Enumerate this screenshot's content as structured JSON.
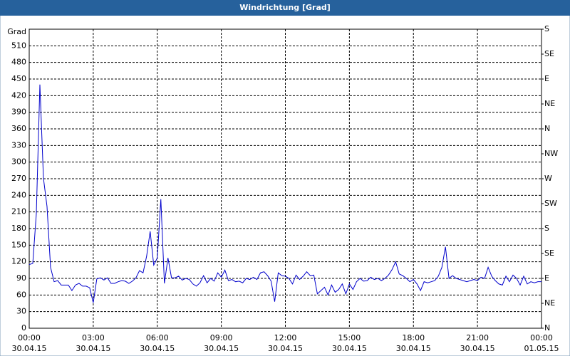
{
  "chart_data": {
    "type": "line",
    "title": "Windrichtung [Grad]",
    "y_label": "Grad",
    "xlim": [
      0,
      1440
    ],
    "xticks": [
      {
        "value": 0,
        "label": "00:00"
      },
      {
        "value": 180,
        "label": "03:00"
      },
      {
        "value": 360,
        "label": "06:00"
      },
      {
        "value": 540,
        "label": "09:00"
      },
      {
        "value": 720,
        "label": "12:00"
      },
      {
        "value": 900,
        "label": "15:00"
      },
      {
        "value": 1080,
        "label": "18:00"
      },
      {
        "value": 1260,
        "label": "21:00"
      },
      {
        "value": 1440,
        "label": "00:00"
      }
    ],
    "xtick_dates": [
      "30.04.15",
      "30.04.15",
      "30.04.15",
      "30.04.15",
      "30.04.15",
      "30.04.15",
      "30.04.15",
      "30.04.15",
      "01.05.15"
    ],
    "ylim": [
      0,
      540
    ],
    "yticks": [
      0,
      30,
      60,
      90,
      120,
      150,
      180,
      210,
      240,
      270,
      300,
      330,
      360,
      390,
      420,
      450,
      480,
      510
    ],
    "y2lim": [
      0,
      540
    ],
    "y2ticks": [
      {
        "value": 0,
        "label": "N"
      },
      {
        "value": 45,
        "label": "NE"
      },
      {
        "value": 90,
        "label": "E"
      },
      {
        "value": 135,
        "label": "SE"
      },
      {
        "value": 180,
        "label": "S"
      },
      {
        "value": 225,
        "label": "SW"
      },
      {
        "value": 270,
        "label": "W"
      },
      {
        "value": 315,
        "label": "NW"
      },
      {
        "value": 360,
        "label": "N"
      },
      {
        "value": 405,
        "label": "NE"
      },
      {
        "value": 450,
        "label": "E"
      },
      {
        "value": 495,
        "label": "SE"
      },
      {
        "value": 540,
        "label": "S"
      }
    ],
    "grid": true,
    "color": "#0000cc",
    "x": [
      0,
      10,
      20,
      30,
      40,
      50,
      60,
      70,
      80,
      90,
      100,
      110,
      120,
      130,
      140,
      150,
      160,
      170,
      180,
      190,
      200,
      210,
      220,
      230,
      240,
      250,
      260,
      270,
      280,
      290,
      300,
      310,
      320,
      330,
      340,
      350,
      360,
      370,
      380,
      390,
      400,
      410,
      420,
      430,
      440,
      450,
      460,
      470,
      480,
      490,
      500,
      510,
      520,
      530,
      540,
      550,
      560,
      570,
      580,
      590,
      600,
      610,
      620,
      630,
      640,
      650,
      660,
      670,
      680,
      690,
      700,
      710,
      720,
      730,
      740,
      750,
      760,
      770,
      780,
      790,
      800,
      810,
      820,
      830,
      840,
      850,
      860,
      870,
      880,
      890,
      900,
      910,
      920,
      930,
      940,
      950,
      960,
      970,
      980,
      990,
      1000,
      1010,
      1020,
      1030,
      1040,
      1050,
      1060,
      1070,
      1080,
      1090,
      1100,
      1110,
      1120,
      1130,
      1140,
      1150,
      1160,
      1170,
      1180,
      1190,
      1200,
      1210,
      1220,
      1230,
      1240,
      1250,
      1260,
      1270,
      1280,
      1290,
      1300,
      1310,
      1320,
      1330,
      1340,
      1350,
      1360,
      1370,
      1380,
      1390,
      1400,
      1410,
      1420,
      1430,
      1440
    ],
    "values": [
      115,
      117,
      207,
      440,
      271,
      220,
      110,
      84,
      86,
      78,
      78,
      78,
      68,
      78,
      81,
      76,
      76,
      73,
      46,
      89,
      91,
      87,
      91,
      81,
      81,
      84,
      86,
      85,
      81,
      85,
      91,
      104,
      100,
      130,
      175,
      114,
      127,
      233,
      81,
      127,
      91,
      91,
      94,
      87,
      90,
      88,
      80,
      76,
      82,
      95,
      82,
      90,
      85,
      100,
      92,
      105,
      86,
      88,
      84,
      85,
      82,
      90,
      88,
      92,
      88,
      100,
      102,
      95,
      85,
      48,
      100,
      95,
      94,
      90,
      80,
      96,
      88,
      94,
      102,
      95,
      96,
      62,
      68,
      74,
      60,
      78,
      65,
      70,
      80,
      62,
      80,
      70,
      84,
      90,
      85,
      86,
      92,
      88,
      90,
      86,
      90,
      96,
      106,
      120,
      98,
      95,
      90,
      84,
      88,
      80,
      68,
      84,
      82,
      84,
      86,
      94,
      110,
      147,
      90,
      95,
      90,
      88,
      86,
      84,
      86,
      88,
      86,
      92,
      90,
      110,
      94,
      86,
      80,
      78,
      94,
      84,
      96,
      90,
      78,
      94,
      80,
      84,
      82,
      84,
      84
    ]
  }
}
